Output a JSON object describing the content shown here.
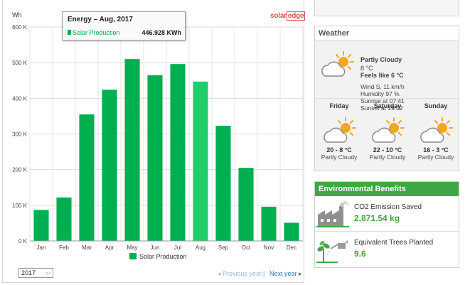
{
  "chart": {
    "unit": "Wh",
    "brand_a": "solar",
    "brand_b": "edge",
    "tooltip": {
      "title": "Energy – Aug, 2017",
      "series": "Solar Production",
      "value": "446.928 KWh"
    },
    "legend": "Solar Production",
    "y_ticks": [
      "0 K",
      "100 K",
      "200 K",
      "300 K",
      "400 K",
      "500 K",
      "600 K"
    ],
    "highlight_index": 7
  },
  "chart_data": {
    "type": "bar",
    "categories": [
      "Jan",
      "Feb",
      "Mar",
      "Apr",
      "May",
      "Jun",
      "Jul",
      "Aug",
      "Sep",
      "Oct",
      "Nov",
      "Dec"
    ],
    "series": [
      {
        "name": "Solar Production",
        "values": [
          87000,
          122000,
          355000,
          424000,
          510000,
          465000,
          496000,
          446928,
          323000,
          205000,
          96000,
          51000
        ]
      }
    ],
    "ylabel": "Wh",
    "ylim": [
      0,
      600000
    ],
    "grid": true,
    "legend": "bottom",
    "colors": {
      "bar": "#00b050",
      "highlight": "#22cc6a"
    }
  },
  "controls": {
    "year": "2017",
    "prev": "Previous year",
    "sep": "|",
    "next": "Next year"
  },
  "weather": {
    "title": "Weather",
    "current": {
      "desc": "Partly Cloudy",
      "temp": "8 °C",
      "feels": "Feels like 6 °C",
      "wind": "Wind S, 11 km/h",
      "humidity": "Humidity 97 %",
      "sunrise": "Sunrise at 07:41",
      "sunset": "Sunset at 19:02"
    },
    "forecast": [
      {
        "day": "Friday",
        "range": "20 - 8 °C",
        "desc": "Partly Cloudy"
      },
      {
        "day": "Saturday",
        "range": "22 - 10 °C",
        "desc": "Partly Cloudy"
      },
      {
        "day": "Sunday",
        "range": "16 - 3 °C",
        "desc": "Partly Cloudy"
      }
    ]
  },
  "env": {
    "title": "Environmental Benefits",
    "co2_label": "CO2 Emission Saved",
    "co2_value": "2,871.54 kg",
    "trees_label": "Equivalent Trees Planted",
    "trees_value": "9.6"
  }
}
